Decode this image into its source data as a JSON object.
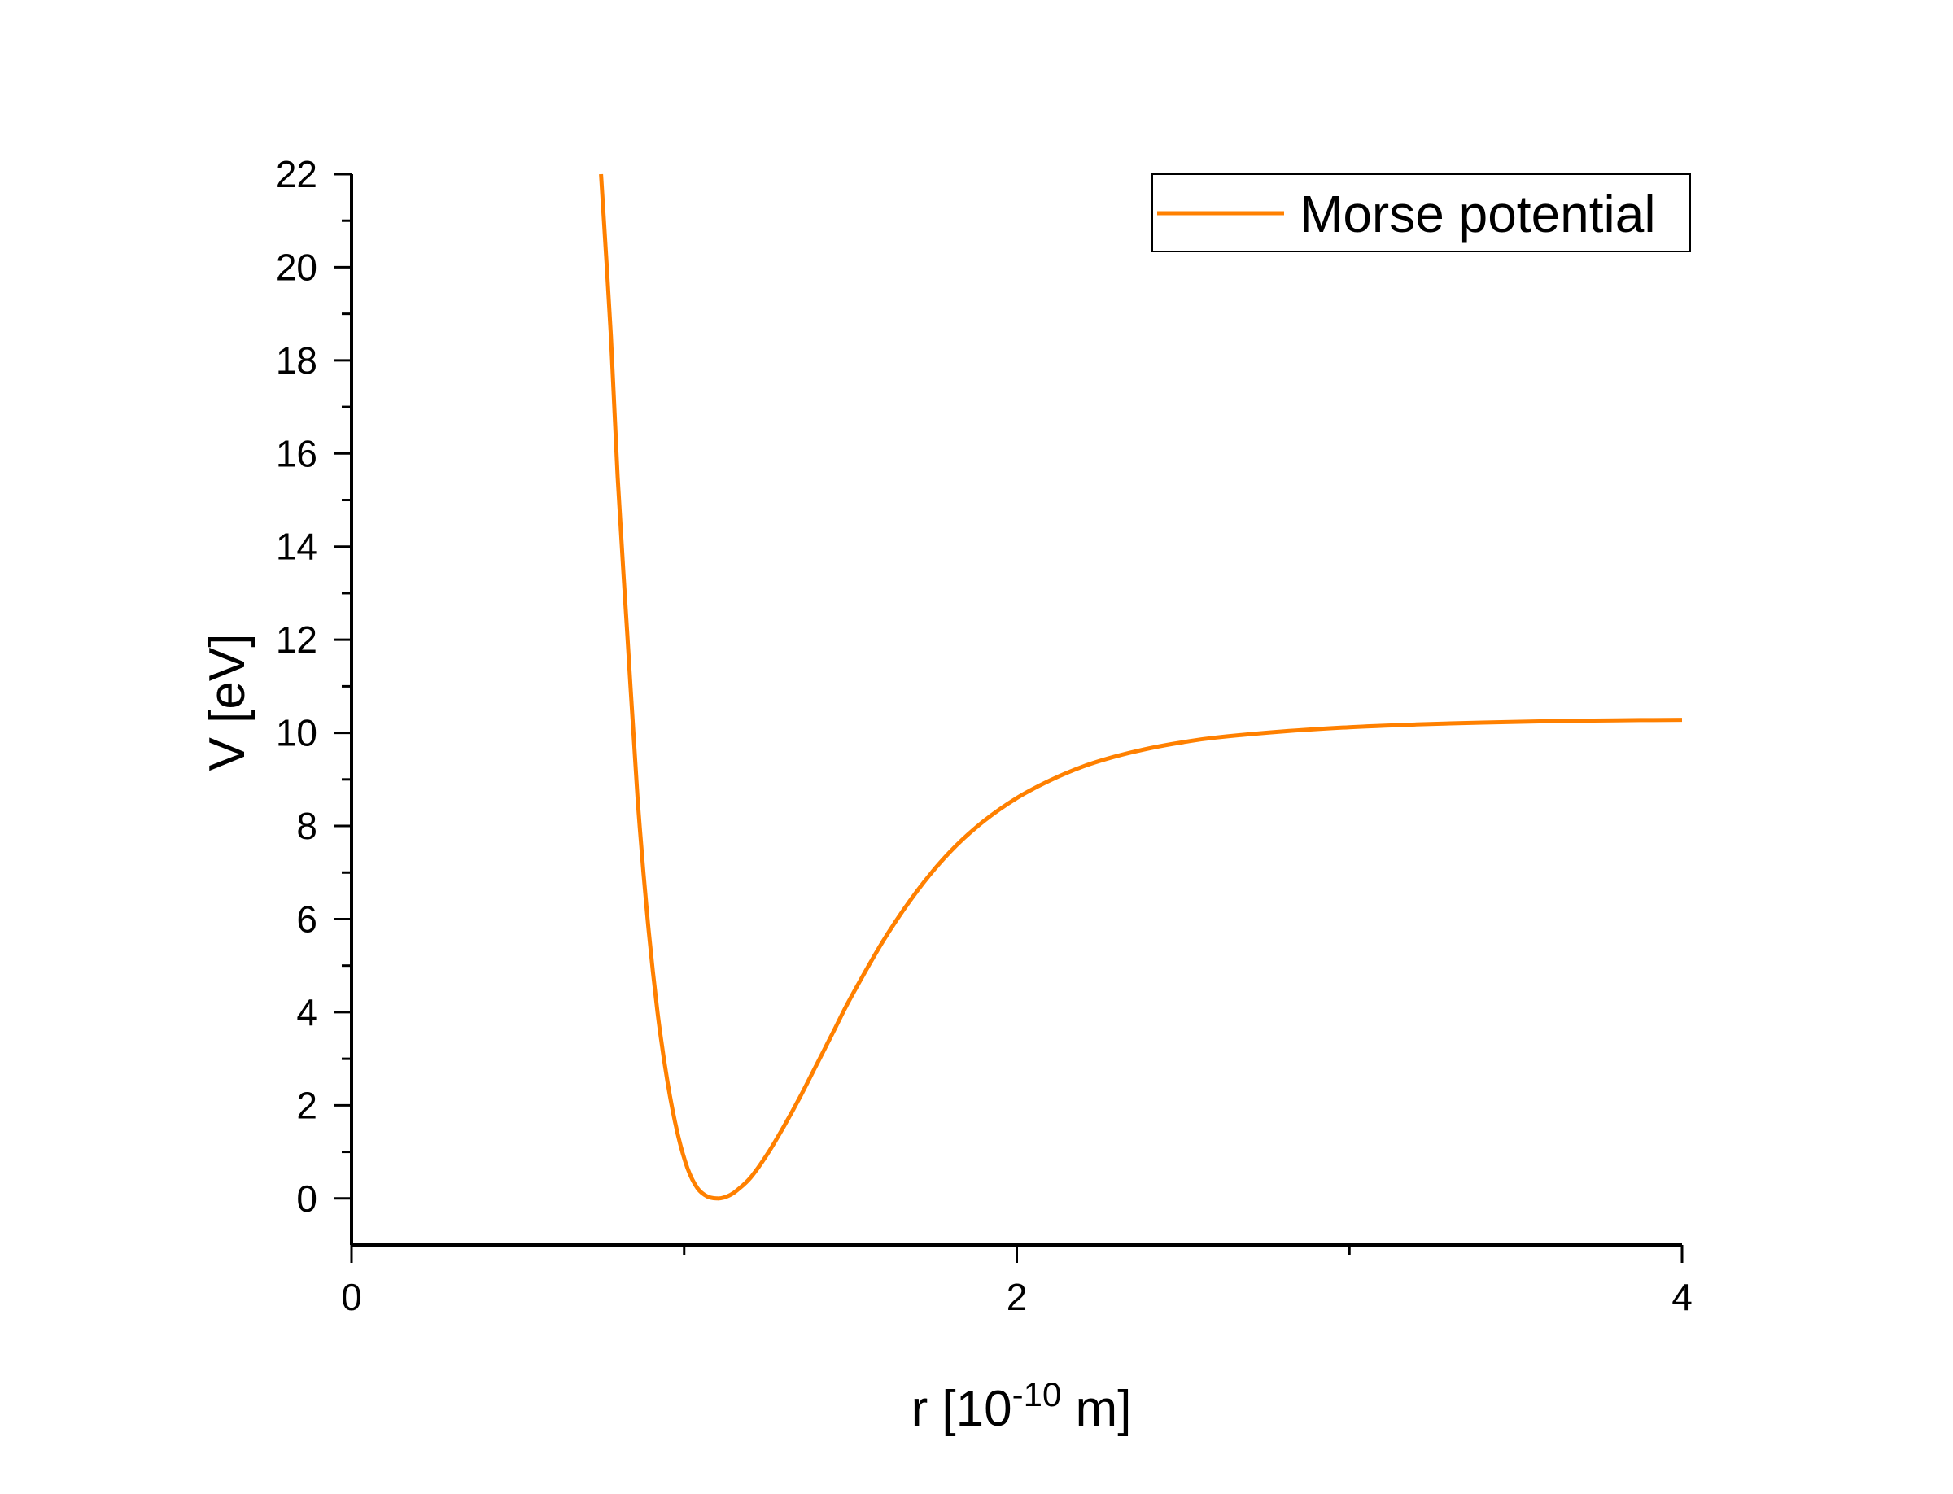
{
  "chart_data": {
    "type": "line",
    "title": "",
    "xlabel": {
      "base": "r [10",
      "exponent": "-10",
      "suffix": " m]"
    },
    "ylabel": "V [eV]",
    "xlim": [
      0,
      4
    ],
    "ylim": [
      -1,
      22
    ],
    "x_ticks": [
      0,
      2,
      4
    ],
    "x_minor_ticks": [
      1,
      3
    ],
    "y_ticks": [
      0,
      2,
      4,
      6,
      8,
      10,
      12,
      14,
      16,
      18,
      20,
      22
    ],
    "y_minor_ticks": [
      1,
      3,
      5,
      7,
      9,
      11,
      13,
      15,
      17,
      19,
      21
    ],
    "grid": false,
    "legend": {
      "position": "top-right",
      "entries": [
        "Morse potential"
      ]
    },
    "colors": {
      "series": "#FF8000",
      "axis": "#000000"
    },
    "series": [
      {
        "name": "Morse potential",
        "x": [
          0.75,
          0.78,
          0.8,
          0.83,
          0.86,
          0.89,
          0.92,
          0.95,
          0.98,
          1.01,
          1.04,
          1.07,
          1.1,
          1.12,
          1.14,
          1.16,
          1.2,
          1.25,
          1.3,
          1.35,
          1.4,
          1.45,
          1.5,
          1.6,
          1.7,
          1.8,
          1.9,
          2.0,
          2.1,
          2.2,
          2.3,
          2.4,
          2.5,
          2.6,
          2.8,
          3.0,
          3.2,
          3.4,
          3.6,
          3.8,
          4.0
        ],
        "y": [
          22.0,
          18.5,
          15.5,
          12.0,
          8.6,
          6.0,
          4.0,
          2.5,
          1.4,
          0.65,
          0.22,
          0.04,
          0.0,
          0.02,
          0.08,
          0.18,
          0.45,
          0.95,
          1.55,
          2.2,
          2.9,
          3.6,
          4.3,
          5.55,
          6.6,
          7.45,
          8.1,
          8.6,
          8.98,
          9.28,
          9.5,
          9.67,
          9.8,
          9.9,
          10.03,
          10.12,
          10.18,
          10.22,
          10.25,
          10.27,
          10.28
        ]
      }
    ]
  }
}
